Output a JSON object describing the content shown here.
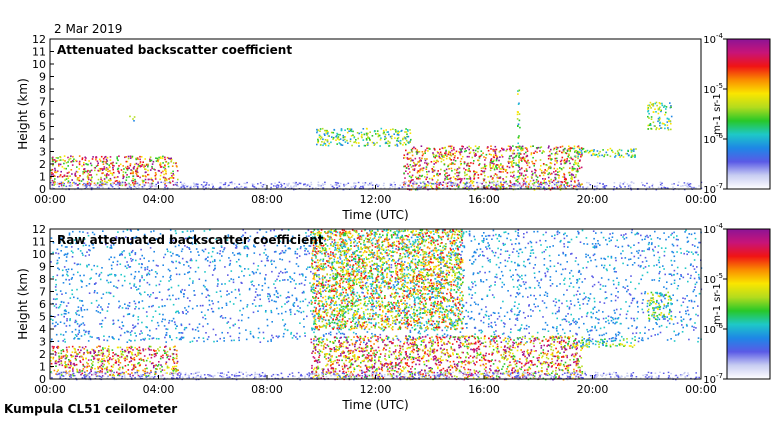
{
  "date": "2 Mar 2019",
  "footer": "Kumpula CL51 ceilometer",
  "colors": {
    "scale": [
      "#ffffff",
      "#c8cdf2",
      "#5a5ae6",
      "#1e87e6",
      "#1ec8c8",
      "#28c828",
      "#b4dc1e",
      "#fae600",
      "#fa8c00",
      "#f01414",
      "#c81478",
      "#8c1496"
    ]
  },
  "chart_data": [
    {
      "type": "heatmap",
      "title": "Attenuated backscatter coefficient",
      "xlabel": "Time (UTC)",
      "ylabel": "Height (km)",
      "xlim": [
        "00:00",
        "00:00"
      ],
      "x_ticks": [
        "00:00",
        "04:00",
        "08:00",
        "12:00",
        "16:00",
        "20:00",
        "00:00"
      ],
      "ylim": [
        0,
        12
      ],
      "y_ticks": [
        "0",
        "1",
        "2",
        "3",
        "4",
        "5",
        "6",
        "7",
        "8",
        "9",
        "10",
        "11",
        "12"
      ],
      "colorbar": {
        "scale": "log",
        "range": [
          1e-07,
          0.0001
        ],
        "ticks": [
          "-7",
          "-6",
          "-5",
          "-4"
        ],
        "label": "m-1 sr-1"
      },
      "features": [
        {
          "desc": "aerosol/cloud layer",
          "t_start": 0.0,
          "t_end": 4.7,
          "h_low": 0.3,
          "h_high": 2.7,
          "intensity": "high"
        },
        {
          "desc": "cloud patch",
          "t_start": 2.9,
          "t_end": 3.1,
          "h_low": 5.5,
          "h_high": 6.0,
          "intensity": "medium"
        },
        {
          "desc": "cloud patches",
          "t_start": 9.8,
          "t_end": 13.3,
          "h_low": 3.5,
          "h_high": 4.9,
          "intensity": "medium"
        },
        {
          "desc": "precipitation/low cloud",
          "t_start": 13.0,
          "t_end": 19.6,
          "h_low": 0.0,
          "h_high": 3.5,
          "intensity": "high"
        },
        {
          "desc": "vertical streak",
          "t_start": 17.2,
          "t_end": 17.3,
          "h_low": 0.0,
          "h_high": 8.0,
          "intensity": "medium"
        },
        {
          "desc": "cloud layer",
          "t_start": 19.0,
          "t_end": 21.6,
          "h_low": 2.6,
          "h_high": 3.3,
          "intensity": "medium"
        },
        {
          "desc": "cloud patches",
          "t_start": 22.0,
          "t_end": 22.9,
          "h_low": 4.8,
          "h_high": 7.0,
          "intensity": "medium"
        }
      ]
    },
    {
      "type": "heatmap",
      "title": "Raw attenuated backscatter coefficient",
      "xlabel": "Time (UTC)",
      "ylabel": "Height (km)",
      "xlim": [
        "00:00",
        "00:00"
      ],
      "x_ticks": [
        "00:00",
        "04:00",
        "08:00",
        "12:00",
        "16:00",
        "20:00",
        "00:00"
      ],
      "ylim": [
        0,
        12
      ],
      "y_ticks": [
        "0",
        "1",
        "2",
        "3",
        "4",
        "5",
        "6",
        "7",
        "8",
        "9",
        "10",
        "11",
        "12"
      ],
      "colorbar": {
        "scale": "log",
        "range": [
          1e-07,
          0.0001
        ],
        "ticks": [
          "-7",
          "-6",
          "-5",
          "-4"
        ],
        "label": "m-1 sr-1"
      },
      "features": [
        {
          "desc": "background noise",
          "t_start": 0.0,
          "t_end": 24.0,
          "h_low": 3.0,
          "h_high": 12.0,
          "intensity": "low"
        },
        {
          "desc": "high noise region",
          "t_start": 9.6,
          "t_end": 15.2,
          "h_low": 4.0,
          "h_high": 12.0,
          "intensity": "medium-high"
        },
        {
          "desc": "aerosol/cloud layer",
          "t_start": 0.0,
          "t_end": 4.7,
          "h_low": 0.3,
          "h_high": 2.7,
          "intensity": "high"
        },
        {
          "desc": "precipitation/low cloud",
          "t_start": 9.6,
          "t_end": 19.6,
          "h_low": 0.0,
          "h_high": 3.5,
          "intensity": "high"
        },
        {
          "desc": "vertical streak",
          "t_start": 17.2,
          "t_end": 17.3,
          "h_low": 0.0,
          "h_high": 12.0,
          "intensity": "low"
        },
        {
          "desc": "cloud layer",
          "t_start": 19.0,
          "t_end": 21.6,
          "h_low": 2.6,
          "h_high": 3.3,
          "intensity": "medium"
        },
        {
          "desc": "cloud patches",
          "t_start": 22.0,
          "t_end": 22.9,
          "h_low": 4.8,
          "h_high": 7.0,
          "intensity": "medium"
        }
      ]
    }
  ]
}
